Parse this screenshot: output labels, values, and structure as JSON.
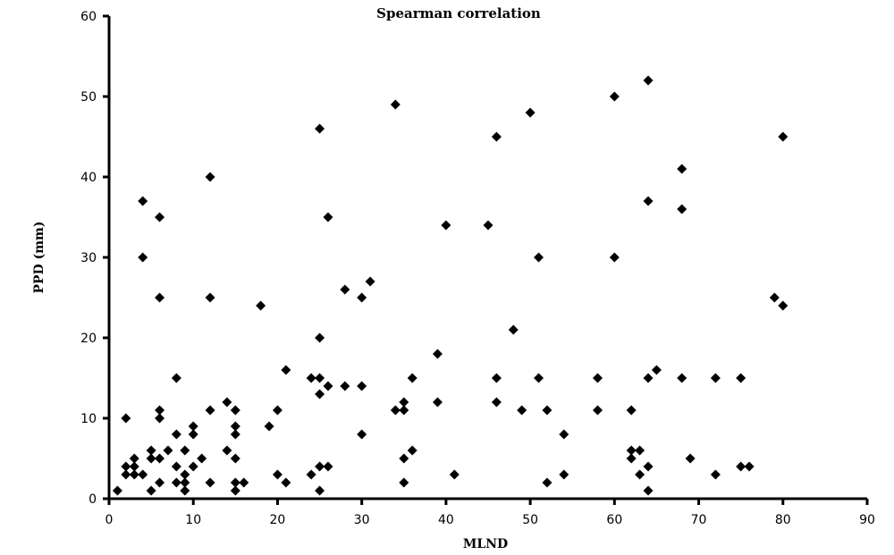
{
  "chart_data": {
    "type": "scatter",
    "title": "Spearman correlation",
    "xlabel": "MLND",
    "ylabel": "PPD (mm)",
    "xlim": [
      0,
      90
    ],
    "ylim": [
      0,
      60
    ],
    "xticks": [
      0,
      10,
      20,
      30,
      40,
      50,
      60,
      70,
      80,
      90
    ],
    "yticks": [
      0,
      10,
      20,
      30,
      40,
      50,
      60
    ],
    "grid": false,
    "marker": "diamond",
    "marker_color": "#000000",
    "points": [
      [
        1,
        1
      ],
      [
        2,
        10
      ],
      [
        2,
        4
      ],
      [
        2,
        3
      ],
      [
        3,
        5
      ],
      [
        3,
        4
      ],
      [
        3,
        3
      ],
      [
        4,
        37
      ],
      [
        4,
        30
      ],
      [
        4,
        3
      ],
      [
        5,
        6
      ],
      [
        5,
        5
      ],
      [
        5,
        1
      ],
      [
        6,
        35
      ],
      [
        6,
        25
      ],
      [
        6,
        11
      ],
      [
        6,
        10
      ],
      [
        6,
        5
      ],
      [
        6,
        2
      ],
      [
        7,
        6
      ],
      [
        8,
        15
      ],
      [
        8,
        8
      ],
      [
        8,
        4
      ],
      [
        8,
        2
      ],
      [
        9,
        6
      ],
      [
        9,
        3
      ],
      [
        9,
        2
      ],
      [
        9,
        1
      ],
      [
        10,
        9
      ],
      [
        10,
        8
      ],
      [
        10,
        4
      ],
      [
        11,
        5
      ],
      [
        12,
        40
      ],
      [
        12,
        25
      ],
      [
        12,
        11
      ],
      [
        12,
        2
      ],
      [
        14,
        12
      ],
      [
        14,
        6
      ],
      [
        15,
        11
      ],
      [
        15,
        9
      ],
      [
        15,
        8
      ],
      [
        15,
        5
      ],
      [
        15,
        2
      ],
      [
        15,
        1
      ],
      [
        16,
        2
      ],
      [
        18,
        24
      ],
      [
        19,
        9
      ],
      [
        20,
        11
      ],
      [
        20,
        3
      ],
      [
        21,
        16
      ],
      [
        21,
        2
      ],
      [
        24,
        15
      ],
      [
        24,
        3
      ],
      [
        25,
        46
      ],
      [
        25,
        20
      ],
      [
        25,
        15
      ],
      [
        25,
        13
      ],
      [
        25,
        4
      ],
      [
        25,
        1
      ],
      [
        26,
        35
      ],
      [
        26,
        14
      ],
      [
        26,
        4
      ],
      [
        28,
        26
      ],
      [
        28,
        14
      ],
      [
        30,
        25
      ],
      [
        30,
        14
      ],
      [
        30,
        8
      ],
      [
        31,
        27
      ],
      [
        34,
        49
      ],
      [
        34,
        11
      ],
      [
        35,
        12
      ],
      [
        35,
        11
      ],
      [
        35,
        5
      ],
      [
        35,
        2
      ],
      [
        36,
        15
      ],
      [
        36,
        6
      ],
      [
        39,
        18
      ],
      [
        39,
        12
      ],
      [
        40,
        34
      ],
      [
        41,
        3
      ],
      [
        45,
        34
      ],
      [
        46,
        45
      ],
      [
        46,
        15
      ],
      [
        46,
        12
      ],
      [
        48,
        21
      ],
      [
        49,
        11
      ],
      [
        50,
        48
      ],
      [
        51,
        30
      ],
      [
        51,
        15
      ],
      [
        52,
        11
      ],
      [
        52,
        2
      ],
      [
        54,
        8
      ],
      [
        54,
        3
      ],
      [
        58,
        15
      ],
      [
        58,
        11
      ],
      [
        60,
        50
      ],
      [
        60,
        30
      ],
      [
        62,
        11
      ],
      [
        62,
        6
      ],
      [
        62,
        5
      ],
      [
        63,
        6
      ],
      [
        63,
        3
      ],
      [
        64,
        52
      ],
      [
        64,
        37
      ],
      [
        64,
        15
      ],
      [
        64,
        4
      ],
      [
        64,
        1
      ],
      [
        65,
        16
      ],
      [
        68,
        41
      ],
      [
        68,
        36
      ],
      [
        68,
        15
      ],
      [
        69,
        5
      ],
      [
        72,
        15
      ],
      [
        72,
        3
      ],
      [
        75,
        15
      ],
      [
        75,
        4
      ],
      [
        76,
        4
      ],
      [
        79,
        25
      ],
      [
        80,
        45
      ],
      [
        80,
        24
      ]
    ]
  }
}
